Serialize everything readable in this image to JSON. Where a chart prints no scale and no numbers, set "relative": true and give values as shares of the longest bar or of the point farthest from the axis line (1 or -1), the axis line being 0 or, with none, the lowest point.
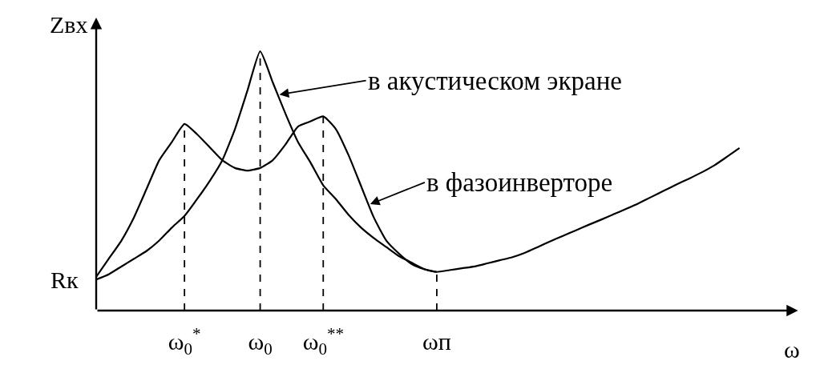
{
  "chart_data": {
    "type": "line",
    "relative": true,
    "ylabel": "Zвх",
    "xlabel": "ω",
    "categories": [
      null,
      null,
      null,
      null,
      null,
      null,
      null,
      "ω$_{0}$$^{*}$",
      null,
      null,
      null,
      null,
      null,
      "ω$_{0}$",
      null,
      null,
      null,
      null,
      "ω$_{0}$$^{**}$",
      null,
      null,
      null,
      null,
      null,
      null,
      null,
      null,
      "ωп",
      null,
      null,
      null,
      null,
      null,
      null,
      null,
      null,
      null,
      null,
      null,
      null,
      null,
      null,
      null,
      null,
      null,
      null,
      null,
      null,
      null,
      null,
      null,
      null
    ],
    "series": [
      {
        "color": "#000000",
        "values": [
          0.12,
          0.14,
          0.17,
          0.2,
          0.23,
          0.27,
          0.32,
          0.365,
          0.43,
          0.5,
          0.58,
          0.7,
          0.85,
          1.0,
          0.88,
          0.76,
          0.65,
          0.57,
          0.483,
          0.43,
          0.37,
          0.32,
          0.28,
          0.245,
          0.21,
          0.185,
          0.16,
          0.149,
          null,
          null,
          null,
          null,
          null,
          null,
          null,
          null,
          null,
          null,
          null,
          null,
          null,
          null,
          null,
          null,
          null,
          null,
          null,
          null,
          null,
          null,
          null,
          null
        ]
      },
      {
        "color": "#000000",
        "values": [
          0.13,
          0.2,
          0.27,
          0.36,
          0.47,
          0.58,
          0.65,
          0.72,
          0.68,
          0.63,
          0.58,
          0.55,
          0.54,
          0.55,
          0.58,
          0.64,
          0.71,
          0.73,
          0.749,
          0.7,
          0.6,
          0.48,
          0.36,
          0.27,
          0.22,
          0.18,
          0.16,
          0.149,
          0.156,
          0.163,
          0.17,
          0.182,
          0.194,
          0.206,
          0.223,
          0.245,
          0.267,
          0.288,
          0.309,
          0.33,
          0.35,
          0.371,
          0.392,
          0.414,
          0.438,
          0.462,
          0.486,
          0.509,
          0.533,
          0.56,
          0.593,
          0.627
        ]
      }
    ],
    "ref_lines": [
      {
        "axis": "x",
        "value": "ω$_{0}$$^{*}$",
        "line_style": "dashed"
      },
      {
        "axis": "x",
        "value": "ω$_{0}$",
        "line_style": "dashed"
      },
      {
        "axis": "x",
        "value": "ω$_{0}$$^{**}$",
        "line_style": "dashed"
      },
      {
        "axis": "x",
        "value": "ωп",
        "line_style": "dashed"
      }
    ],
    "annotations": [
      "в акустическом экране",
      "в фазоинверторе",
      "Rк"
    ],
    "marker": "none",
    "line_style": "solid"
  }
}
